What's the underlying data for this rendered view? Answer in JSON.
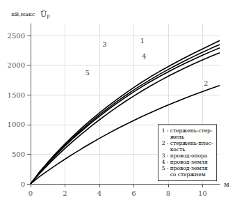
{
  "chart_data": {
    "type": "line",
    "xlabel": "м",
    "ylabel": {
      "text": "Ū",
      "subscript": "р",
      "unit": "кВ,макс"
    },
    "xlim": [
      0,
      11
    ],
    "ylim": [
      0,
      2700
    ],
    "xticks": [
      0,
      2,
      4,
      6,
      8,
      10
    ],
    "yticks": [
      0,
      500,
      1000,
      1500,
      2000,
      2500
    ],
    "grid": true,
    "legend": "lower right",
    "legend_entries": [
      "1 - стержень-стер-\nжень",
      "2 - стержень-плос-\nкость",
      "3 - провод-опора",
      "4 - провод-земля",
      "5 - провод-земля\nсо стержнем"
    ],
    "x": [
      0.0,
      0.5,
      1.0,
      1.5,
      2.0,
      2.5,
      3.0,
      3.5,
      4.0,
      4.5,
      5.0,
      5.5,
      6.0,
      6.5,
      7.0,
      7.5,
      8.0,
      8.5,
      9.0,
      9.5,
      10.0,
      10.5,
      11.0
    ],
    "series": [
      {
        "name": "1",
        "color": "#000000",
        "label_at": [
          6.5,
          2410
        ],
        "values": [
          0,
          195,
          365,
          525,
          675,
          815,
          950,
          1075,
          1195,
          1310,
          1420,
          1525,
          1625,
          1720,
          1810,
          1895,
          1975,
          2055,
          2130,
          2205,
          2275,
          2345,
          2415
        ]
      },
      {
        "name": "3",
        "color": "#000000",
        "label_at": [
          4.3,
          2350
        ],
        "values": [
          0,
          188,
          352,
          507,
          653,
          790,
          920,
          1045,
          1163,
          1275,
          1383,
          1485,
          1583,
          1675,
          1763,
          1847,
          1927,
          2005,
          2078,
          2150,
          2218,
          2285,
          2348
        ]
      },
      {
        "name": "4",
        "color": "#000000",
        "label_at": [
          6.6,
          2150
        ],
        "values": [
          0,
          183,
          343,
          495,
          638,
          772,
          900,
          1022,
          1138,
          1249,
          1354,
          1455,
          1551,
          1642,
          1728,
          1810,
          1888,
          1963,
          2034,
          2102,
          2168,
          2232,
          2293
        ]
      },
      {
        "name": "5",
        "color": "#000000",
        "label_at": [
          3.3,
          1870
        ],
        "values": [
          0,
          168,
          318,
          462,
          598,
          727,
          850,
          967,
          1080,
          1187,
          1290,
          1388,
          1481,
          1570,
          1655,
          1736,
          1813,
          1887,
          1957,
          2024,
          2089,
          2151,
          2210
        ]
      },
      {
        "name": "2",
        "color": "#000000",
        "label_at": [
          10.2,
          1700
        ],
        "values": [
          0,
          118,
          222,
          322,
          417,
          509,
          598,
          684,
          767,
          847,
          924,
          998,
          1069,
          1138,
          1204,
          1268,
          1330,
          1389,
          1447,
          1502,
          1555,
          1607,
          1657
        ]
      }
    ]
  }
}
